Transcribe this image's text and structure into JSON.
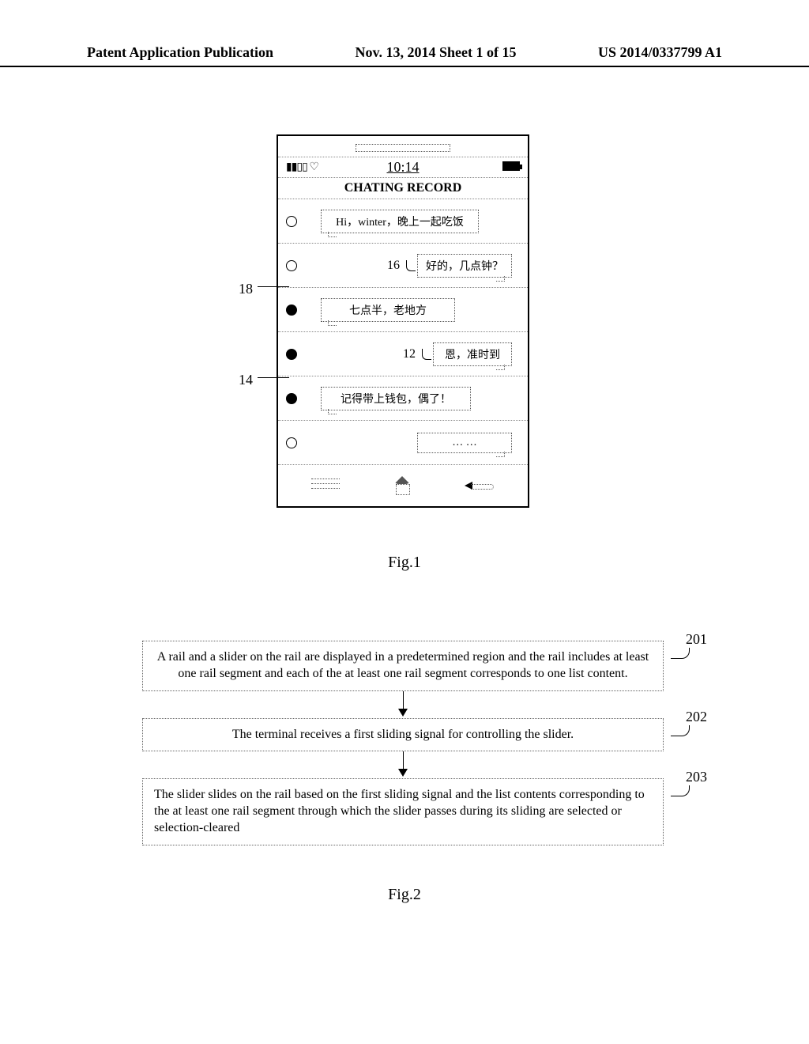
{
  "header": {
    "left": "Patent Application Publication",
    "center": "Nov. 13, 2014  Sheet 1 of 15",
    "right": "US 2014/0337799 A1"
  },
  "fig1": {
    "caption": "Fig.1",
    "status_time": "10:14",
    "title": "CHATING RECORD",
    "callout_18": "18",
    "callout_14": "14",
    "callout_16": "16",
    "callout_12": "12",
    "messages": [
      {
        "text": "Hi，winter，晚上一起吃饭",
        "side": "left",
        "filled": false,
        "bubble_width": 200
      },
      {
        "text": "好的，几点钟？",
        "side": "right",
        "filled": false,
        "ref": "16",
        "bubble_width": 120
      },
      {
        "text": "七点半，老地方",
        "side": "left",
        "filled": true,
        "bubble_width": 170
      },
      {
        "text": "恩，准时到",
        "side": "right",
        "filled": true,
        "ref": "12",
        "bubble_width": 100
      },
      {
        "text": "记得带上钱包，偶了！",
        "side": "left",
        "filled": true,
        "bubble_width": 190
      },
      {
        "text": "… …",
        "side": "right",
        "filled": false,
        "bubble_width": 120
      }
    ]
  },
  "fig2": {
    "caption": "Fig.2",
    "steps": [
      {
        "ref": "201",
        "text": "A rail and a slider on the rail are displayed in a predetermined region and the rail includes at least one rail segment and each of the at least one rail segment corresponds to one list content.",
        "align": "center"
      },
      {
        "ref": "202",
        "text": "The terminal receives a first sliding signal for controlling the slider.",
        "align": "center"
      },
      {
        "ref": "203",
        "text": "The slider slides on the rail based on the first sliding signal and the list contents corresponding to the at least one rail segment through which the slider passes during its sliding are selected or selection-cleared",
        "align": "left"
      }
    ]
  },
  "colors": {
    "text": "#000000",
    "dotted": "#666666",
    "background": "#ffffff"
  }
}
